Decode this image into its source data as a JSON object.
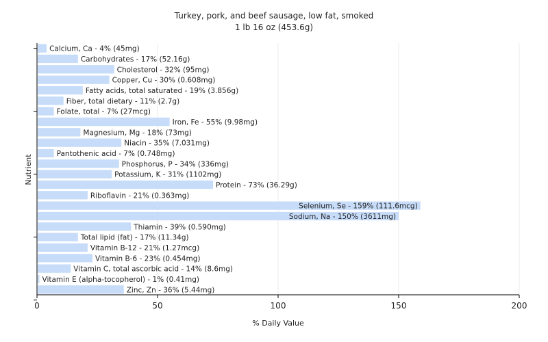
{
  "chart_data": {
    "type": "bar",
    "orientation": "horizontal",
    "title": "Turkey, pork, and beef sausage, low fat, smoked",
    "subtitle": "1 lb 16 oz (453.6g)",
    "xlabel": "% Daily Value",
    "ylabel": "Nutrient",
    "xlim": [
      0,
      200
    ],
    "xticks": [
      "0",
      "50",
      "100",
      "150",
      "200"
    ],
    "grid": true,
    "bar_color": "#c6dcf9",
    "categories": [
      "Calcium, Ca",
      "Carbohydrates",
      "Cholesterol",
      "Copper, Cu",
      "Fatty acids, total saturated",
      "Fiber, total dietary",
      "Folate, total",
      "Iron, Fe",
      "Magnesium, Mg",
      "Niacin",
      "Pantothenic acid",
      "Phosphorus, P",
      "Potassium, K",
      "Protein",
      "Riboflavin",
      "Selenium, Se",
      "Sodium, Na",
      "Thiamin",
      "Total lipid (fat)",
      "Vitamin B-12",
      "Vitamin B-6",
      "Vitamin C, total ascorbic acid",
      "Vitamin E (alpha-tocopherol)",
      "Zinc, Zn"
    ],
    "values": [
      4,
      17,
      32,
      30,
      19,
      11,
      7,
      55,
      18,
      35,
      7,
      34,
      31,
      73,
      21,
      159,
      150,
      39,
      17,
      21,
      23,
      14,
      1,
      36
    ],
    "labels": [
      "Calcium, Ca - 4% (45mg)",
      "Carbohydrates - 17% (52.16g)",
      "Cholesterol - 32% (95mg)",
      "Copper, Cu - 30% (0.608mg)",
      "Fatty acids, total saturated - 19% (3.856g)",
      "Fiber, total dietary - 11% (2.7g)",
      "Folate, total - 7% (27mcg)",
      "Iron, Fe - 55% (9.98mg)",
      "Magnesium, Mg - 18% (73mg)",
      "Niacin - 35% (7.031mg)",
      "Pantothenic acid - 7% (0.748mg)",
      "Phosphorus, P - 34% (336mg)",
      "Potassium, K - 31% (1102mg)",
      "Protein - 73% (36.29g)",
      "Riboflavin - 21% (0.363mg)",
      "Selenium, Se - 159% (111.6mcg)",
      "Sodium, Na - 150% (3611mg)",
      "Thiamin - 39% (0.590mg)",
      "Total lipid (fat) - 17% (11.34g)",
      "Vitamin B-12 - 21% (1.27mcg)",
      "Vitamin B-6 - 23% (0.454mg)",
      "Vitamin C, total ascorbic acid - 14% (8.6mg)",
      "Vitamin E (alpha-tocopherol) - 1% (0.41mg)",
      "Zinc, Zn - 36% (5.44mg)"
    ]
  }
}
